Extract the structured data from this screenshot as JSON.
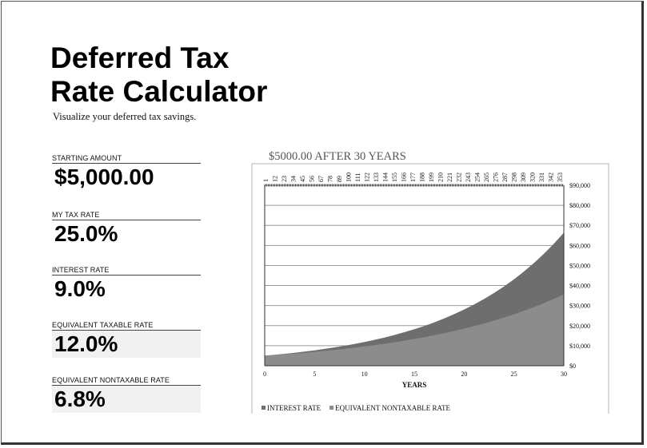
{
  "header": {
    "title_line1": "Deferred Tax",
    "title_line2": "Rate Calculator",
    "subtitle": "Visualize your deferred tax savings."
  },
  "inputs": {
    "starting_amount": {
      "label": "STARTING AMOUNT",
      "value": "$5,000.00"
    },
    "my_tax_rate": {
      "label": "MY TAX RATE",
      "value": "25.0%"
    },
    "interest_rate": {
      "label": "INTEREST RATE",
      "value": "9.0%"
    },
    "equivalent_taxable_rate": {
      "label": "EQUIVALENT TAXABLE RATE",
      "value": "12.0%"
    },
    "equivalent_nontaxable_rate": {
      "label": "EQUIVALENT NONTAXABLE RATE",
      "value": "6.8%"
    }
  },
  "chart_data": {
    "type": "area",
    "title": "$5000.00 AFTER 30 YEARS",
    "xlabel": "YEARS",
    "ylabel": "",
    "xlim": [
      0,
      30
    ],
    "ylim": [
      0,
      90000
    ],
    "x_ticks": [
      0,
      5,
      10,
      15,
      20,
      25,
      30
    ],
    "y_ticks": [
      "$0",
      "$10,000",
      "$20,000",
      "$30,000",
      "$40,000",
      "$50,000",
      "$60,000",
      "$70,000",
      "$80,000",
      "$90,000"
    ],
    "y_tick_values": [
      0,
      10000,
      20000,
      30000,
      40000,
      50000,
      60000,
      70000,
      80000,
      90000
    ],
    "top_axis_labels": [
      "1",
      "12",
      "23",
      "34",
      "45",
      "56",
      "67",
      "78",
      "89",
      "100",
      "111",
      "122",
      "133",
      "144",
      "155",
      "166",
      "177",
      "188",
      "199",
      "210",
      "221",
      "232",
      "243",
      "254",
      "265",
      "276",
      "287",
      "298",
      "309",
      "320",
      "331",
      "342",
      "353"
    ],
    "grid": true,
    "legend_position": "bottom",
    "series": [
      {
        "name": "INTEREST RATE",
        "color": "#6e6e6e",
        "x": [
          0,
          1,
          2,
          3,
          4,
          5,
          6,
          7,
          8,
          9,
          10,
          11,
          12,
          13,
          14,
          15,
          16,
          17,
          18,
          19,
          20,
          21,
          22,
          23,
          24,
          25,
          26,
          27,
          28,
          29,
          30
        ],
        "values": [
          5000,
          5450,
          5941,
          6475,
          7058,
          7693,
          8386,
          9140,
          9963,
          10860,
          11837,
          12902,
          14063,
          15329,
          16709,
          18212,
          19851,
          21638,
          23585,
          25708,
          28022,
          30544,
          33293,
          36289,
          39555,
          43115,
          46995,
          51225,
          55835,
          60860,
          66338
        ]
      },
      {
        "name": "EQUIVALENT NONTAXABLE RATE",
        "color": "#8c8c8c",
        "x": [
          0,
          1,
          2,
          3,
          4,
          5,
          6,
          7,
          8,
          9,
          10,
          11,
          12,
          13,
          14,
          15,
          16,
          17,
          18,
          19,
          20,
          21,
          22,
          23,
          24,
          25,
          26,
          27,
          28,
          29,
          30
        ],
        "values": [
          5000,
          5338,
          5699,
          6084,
          6496,
          6935,
          7404,
          7904,
          8438,
          9009,
          9618,
          10268,
          10962,
          11703,
          12494,
          13338,
          14240,
          15203,
          16230,
          17327,
          18499,
          19749,
          21084,
          22509,
          24031,
          25655,
          27389,
          29241,
          31217,
          33327,
          35580
        ]
      }
    ]
  },
  "colors": {
    "interest_area": "#6e6e6e",
    "nontaxable_area": "#8c8c8c",
    "shaded_value_bg": "#f1f1f1"
  }
}
